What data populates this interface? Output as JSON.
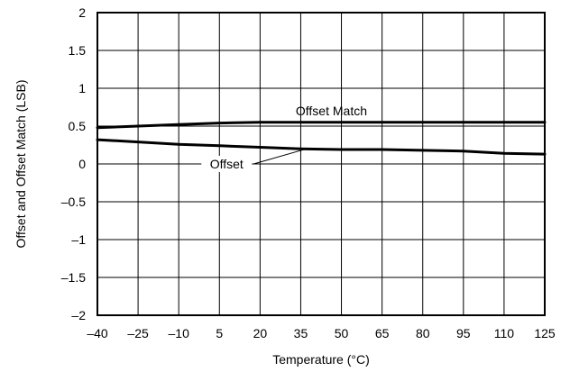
{
  "chart_data": {
    "type": "line",
    "xlabel": "Temperature (°C)",
    "ylabel": "Offset and Offset Match (LSB)",
    "xlim": [
      -40,
      125
    ],
    "ylim": [
      -2,
      2
    ],
    "x_ticks": [
      -40,
      -25,
      -10,
      5,
      20,
      35,
      50,
      65,
      80,
      95,
      110,
      125
    ],
    "y_ticks": [
      -2,
      -1.5,
      -1,
      -0.5,
      0,
      0.5,
      1,
      1.5,
      2
    ],
    "x_tick_labels": [
      "–40",
      "–25",
      "–10",
      "5",
      "20",
      "35",
      "50",
      "65",
      "80",
      "95",
      "110",
      "125"
    ],
    "y_tick_labels": [
      "–2",
      "–1.5",
      "–1",
      "–0.5",
      "0",
      "0.5",
      "1",
      "1.5",
      "2"
    ],
    "grid": true,
    "series": [
      {
        "name": "Offset Match",
        "x": [
          -40,
          -25,
          -10,
          5,
          20,
          35,
          50,
          65,
          80,
          95,
          110,
          125
        ],
        "y": [
          0.48,
          0.5,
          0.52,
          0.54,
          0.55,
          0.55,
          0.55,
          0.55,
          0.55,
          0.55,
          0.55,
          0.55
        ]
      },
      {
        "name": "Offset",
        "x": [
          -40,
          -25,
          -10,
          5,
          20,
          35,
          50,
          65,
          80,
          95,
          110,
          125
        ],
        "y": [
          0.32,
          0.29,
          0.26,
          0.24,
          0.22,
          0.2,
          0.19,
          0.19,
          0.18,
          0.17,
          0.14,
          0.13
        ]
      }
    ],
    "annotations": [
      {
        "text": "Offset Match",
        "series": "Offset Match"
      },
      {
        "text": "Offset",
        "series": "Offset"
      }
    ]
  }
}
